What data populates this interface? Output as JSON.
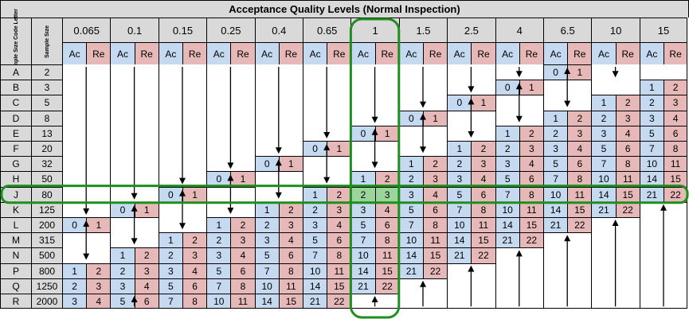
{
  "title": "Acceptance Quality Levels (Normal Inspection)",
  "headers": {
    "code_letter": "Sample Size Code Letter",
    "sample_size": "Sample Size",
    "ac": "Ac",
    "re": "Re"
  },
  "aql_levels": [
    "0.065",
    "0.1",
    "0.15",
    "0.25",
    "0.4",
    "0.65",
    "1",
    "1.5",
    "2.5",
    "4",
    "6.5",
    "10",
    "15"
  ],
  "rows": [
    {
      "letter": "A",
      "size": "2"
    },
    {
      "letter": "B",
      "size": "3"
    },
    {
      "letter": "C",
      "size": "5"
    },
    {
      "letter": "D",
      "size": "8"
    },
    {
      "letter": "E",
      "size": "13"
    },
    {
      "letter": "F",
      "size": "20"
    },
    {
      "letter": "G",
      "size": "32"
    },
    {
      "letter": "H",
      "size": "50"
    },
    {
      "letter": "J",
      "size": "80"
    },
    {
      "letter": "K",
      "size": "125"
    },
    {
      "letter": "L",
      "size": "200"
    },
    {
      "letter": "M",
      "size": "315"
    },
    {
      "letter": "N",
      "size": "500"
    },
    {
      "letter": "P",
      "size": "800"
    },
    {
      "letter": "Q",
      "size": "1250"
    },
    {
      "letter": "R",
      "size": "2000"
    }
  ],
  "ac_re": [
    [
      null,
      null,
      null,
      null,
      null,
      null,
      null,
      null,
      null,
      null,
      [
        "0",
        "1"
      ],
      null,
      null
    ],
    [
      null,
      null,
      null,
      null,
      null,
      null,
      null,
      null,
      null,
      [
        "0",
        "1"
      ],
      null,
      null,
      [
        "1",
        "2"
      ]
    ],
    [
      null,
      null,
      null,
      null,
      null,
      null,
      null,
      null,
      [
        "0",
        "1"
      ],
      null,
      null,
      [
        "1",
        "2"
      ],
      [
        "2",
        "3"
      ]
    ],
    [
      null,
      null,
      null,
      null,
      null,
      null,
      null,
      [
        "0",
        "1"
      ],
      null,
      null,
      [
        "1",
        "2"
      ],
      [
        "2",
        "3"
      ],
      [
        "3",
        "4"
      ]
    ],
    [
      null,
      null,
      null,
      null,
      null,
      null,
      [
        "0",
        "1"
      ],
      null,
      null,
      [
        "1",
        "2"
      ],
      [
        "2",
        "3"
      ],
      [
        "3",
        "4"
      ],
      [
        "5",
        "6"
      ]
    ],
    [
      null,
      null,
      null,
      null,
      null,
      [
        "0",
        "1"
      ],
      null,
      null,
      [
        "1",
        "2"
      ],
      [
        "2",
        "3"
      ],
      [
        "3",
        "4"
      ],
      [
        "5",
        "6"
      ],
      [
        "7",
        "8"
      ]
    ],
    [
      null,
      null,
      null,
      null,
      [
        "0",
        "1"
      ],
      null,
      null,
      [
        "1",
        "2"
      ],
      [
        "2",
        "3"
      ],
      [
        "3",
        "4"
      ],
      [
        "5",
        "6"
      ],
      [
        "7",
        "8"
      ],
      [
        "10",
        "11"
      ]
    ],
    [
      null,
      null,
      null,
      [
        "0",
        "1"
      ],
      null,
      null,
      [
        "1",
        "2"
      ],
      [
        "2",
        "3"
      ],
      [
        "3",
        "4"
      ],
      [
        "5",
        "6"
      ],
      [
        "7",
        "8"
      ],
      [
        "10",
        "11"
      ],
      [
        "14",
        "15"
      ]
    ],
    [
      null,
      null,
      [
        "0",
        "1"
      ],
      null,
      null,
      [
        "1",
        "2"
      ],
      [
        "2",
        "3"
      ],
      [
        "3",
        "4"
      ],
      [
        "5",
        "6"
      ],
      [
        "7",
        "8"
      ],
      [
        "10",
        "11"
      ],
      [
        "14",
        "15"
      ],
      [
        "21",
        "22"
      ]
    ],
    [
      null,
      [
        "0",
        "1"
      ],
      null,
      null,
      [
        "1",
        "2"
      ],
      [
        "2",
        "3"
      ],
      [
        "3",
        "4"
      ],
      [
        "5",
        "6"
      ],
      [
        "7",
        "8"
      ],
      [
        "10",
        "11"
      ],
      [
        "14",
        "15"
      ],
      [
        "21",
        "22"
      ],
      null
    ],
    [
      [
        "0",
        "1"
      ],
      null,
      null,
      [
        "1",
        "2"
      ],
      [
        "2",
        "3"
      ],
      [
        "3",
        "4"
      ],
      [
        "5",
        "6"
      ],
      [
        "7",
        "8"
      ],
      [
        "10",
        "11"
      ],
      [
        "14",
        "15"
      ],
      [
        "21",
        "22"
      ],
      null,
      null
    ],
    [
      null,
      null,
      [
        "1",
        "2"
      ],
      [
        "2",
        "3"
      ],
      [
        "3",
        "4"
      ],
      [
        "5",
        "6"
      ],
      [
        "7",
        "8"
      ],
      [
        "10",
        "11"
      ],
      [
        "14",
        "15"
      ],
      [
        "21",
        "22"
      ],
      null,
      null,
      null
    ],
    [
      null,
      [
        "1",
        "2"
      ],
      [
        "2",
        "3"
      ],
      [
        "3",
        "4"
      ],
      [
        "5",
        "6"
      ],
      [
        "7",
        "8"
      ],
      [
        "10",
        "11"
      ],
      [
        "14",
        "15"
      ],
      [
        "21",
        "22"
      ],
      null,
      null,
      null,
      null
    ],
    [
      [
        "1",
        "2"
      ],
      [
        "2",
        "3"
      ],
      [
        "3",
        "4"
      ],
      [
        "5",
        "6"
      ],
      [
        "7",
        "8"
      ],
      [
        "10",
        "11"
      ],
      [
        "14",
        "15"
      ],
      [
        "21",
        "22"
      ],
      null,
      null,
      null,
      null,
      null
    ],
    [
      [
        "2",
        "3"
      ],
      [
        "3",
        "4"
      ],
      [
        "5",
        "6"
      ],
      [
        "7",
        "8"
      ],
      [
        "10",
        "11"
      ],
      [
        "14",
        "15"
      ],
      [
        "21",
        "22"
      ],
      null,
      null,
      null,
      null,
      null,
      null
    ],
    [
      [
        "3",
        "4"
      ],
      [
        "5",
        "6"
      ],
      [
        "7",
        "8"
      ],
      [
        "10",
        "11"
      ],
      [
        "14",
        "15"
      ],
      [
        "21",
        "22"
      ],
      null,
      null,
      null,
      null,
      null,
      null,
      null
    ]
  ],
  "arrows": [
    {
      "aql_index": 0,
      "direction": "down",
      "from_row": "A",
      "to_row": "K"
    },
    {
      "aql_index": 1,
      "direction": "down",
      "from_row": "A",
      "to_row": "J"
    },
    {
      "aql_index": 2,
      "direction": "down",
      "from_row": "A",
      "to_row": "H"
    },
    {
      "aql_index": 3,
      "direction": "down",
      "from_row": "A",
      "to_row": "G"
    },
    {
      "aql_index": 4,
      "direction": "down",
      "from_row": "A",
      "to_row": "F"
    },
    {
      "aql_index": 5,
      "direction": "down",
      "from_row": "A",
      "to_row": "E"
    },
    {
      "aql_index": 6,
      "direction": "down",
      "from_row": "A",
      "to_row": "D"
    },
    {
      "aql_index": 7,
      "direction": "down",
      "from_row": "A",
      "to_row": "C"
    },
    {
      "aql_index": 8,
      "direction": "down",
      "from_row": "A",
      "to_row": "B"
    },
    {
      "aql_index": 9,
      "direction": "down",
      "from_row": "A",
      "to_row": "A"
    },
    {
      "aql_index": 11,
      "direction": "down",
      "from_row": "A",
      "to_row": "A"
    },
    {
      "aql_index": 0,
      "direction": "both",
      "from_row": "L",
      "to_row": "N"
    },
    {
      "aql_index": 1,
      "direction": "both",
      "from_row": "K",
      "to_row": "M"
    },
    {
      "aql_index": 2,
      "direction": "both",
      "from_row": "J",
      "to_row": "L"
    },
    {
      "aql_index": 3,
      "direction": "both",
      "from_row": "H",
      "to_row": "K"
    },
    {
      "aql_index": 4,
      "direction": "both",
      "from_row": "G",
      "to_row": "J"
    },
    {
      "aql_index": 5,
      "direction": "both",
      "from_row": "F",
      "to_row": "H"
    },
    {
      "aql_index": 6,
      "direction": "both",
      "from_row": "E",
      "to_row": "G"
    },
    {
      "aql_index": 7,
      "direction": "both",
      "from_row": "D",
      "to_row": "F"
    },
    {
      "aql_index": 8,
      "direction": "both",
      "from_row": "C",
      "to_row": "E"
    },
    {
      "aql_index": 9,
      "direction": "both",
      "from_row": "B",
      "to_row": "D"
    },
    {
      "aql_index": 10,
      "direction": "both",
      "from_row": "A",
      "to_row": "C"
    },
    {
      "aql_index": 1,
      "direction": "up",
      "from_row": "R",
      "to_row": "R"
    },
    {
      "aql_index": 6,
      "direction": "up",
      "from_row": "R",
      "to_row": "R"
    },
    {
      "aql_index": 7,
      "direction": "up",
      "from_row": "Q",
      "to_row": "R"
    },
    {
      "aql_index": 8,
      "direction": "up",
      "from_row": "P",
      "to_row": "R"
    },
    {
      "aql_index": 9,
      "direction": "up",
      "from_row": "N",
      "to_row": "R"
    },
    {
      "aql_index": 10,
      "direction": "up",
      "from_row": "M",
      "to_row": "R"
    },
    {
      "aql_index": 11,
      "direction": "up",
      "from_row": "L",
      "to_row": "R"
    },
    {
      "aql_index": 12,
      "direction": "up",
      "from_row": "K",
      "to_row": "R"
    }
  ],
  "highlight": {
    "row_letter": "J",
    "aql_level": "1",
    "color": "#1e8f1e",
    "cell_fill": "#9bd59b"
  }
}
